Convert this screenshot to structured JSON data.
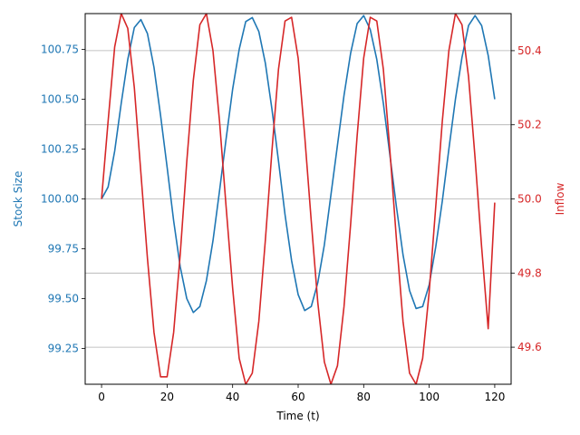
{
  "chart_data": {
    "type": "line",
    "title": "",
    "xlabel": "Time (t)",
    "ylabel_left": "Stock Size",
    "ylabel_right": "Inflow",
    "xlim": [
      -5,
      125
    ],
    "ylim_left": [
      99.07,
      100.93
    ],
    "ylim_right": [
      49.5,
      50.5
    ],
    "x_ticks": [
      0,
      20,
      40,
      60,
      80,
      100,
      120
    ],
    "y_left_ticks": [
      99.25,
      99.5,
      99.75,
      100.0,
      100.25,
      100.5,
      100.75
    ],
    "y_left_tick_labels": [
      "99.25",
      "99.50",
      "99.75",
      "100.00",
      "100.25",
      "100.50",
      "100.75"
    ],
    "y_right_ticks": [
      49.6,
      49.8,
      50.0,
      50.2,
      50.4
    ],
    "y_right_tick_labels": [
      "49.6",
      "49.8",
      "50.0",
      "50.2",
      "50.4"
    ],
    "grid": "horizontal lines at right-axis ticks",
    "legend": "none",
    "colors": {
      "stock": "#1f77b4",
      "inflow": "#d62728",
      "axes": "#000000",
      "grid": "#b0b0b0"
    },
    "series": [
      {
        "axis": "left",
        "x": [
          0,
          2,
          4,
          6,
          8,
          10,
          12,
          14,
          16,
          18,
          20,
          22,
          24,
          26,
          28,
          30,
          32,
          34,
          36,
          38,
          40,
          42,
          44,
          46,
          48,
          50,
          52,
          54,
          56,
          58,
          60,
          62,
          64,
          66,
          68,
          70,
          72,
          74,
          76,
          78,
          80,
          82,
          84,
          86,
          88,
          90,
          92,
          94,
          96,
          98,
          100,
          102,
          104,
          106,
          108,
          110,
          112,
          114,
          116,
          118,
          120
        ],
        "values": [
          100.0,
          100.06,
          100.24,
          100.48,
          100.7,
          100.86,
          100.9,
          100.83,
          100.66,
          100.42,
          100.16,
          99.89,
          99.66,
          99.5,
          99.43,
          99.46,
          99.59,
          99.79,
          100.04,
          100.3,
          100.55,
          100.75,
          100.89,
          100.91,
          100.84,
          100.68,
          100.45,
          100.19,
          99.92,
          99.69,
          99.52,
          99.44,
          99.46,
          99.58,
          99.77,
          100.02,
          100.27,
          100.52,
          100.73,
          100.88,
          100.92,
          100.85,
          100.7,
          100.48,
          100.22,
          99.96,
          99.72,
          99.54,
          99.45,
          99.46,
          99.57,
          99.76,
          99.99,
          100.25,
          100.5,
          100.71,
          100.87,
          100.92,
          100.87,
          100.72,
          100.5
        ]
      },
      {
        "axis": "right",
        "x": [
          0,
          2,
          4,
          6,
          8,
          10,
          12,
          14,
          16,
          18,
          20,
          22,
          24,
          26,
          28,
          30,
          32,
          34,
          36,
          38,
          40,
          42,
          44,
          46,
          48,
          50,
          52,
          54,
          56,
          58,
          60,
          62,
          64,
          66,
          68,
          70,
          72,
          74,
          76,
          78,
          80,
          82,
          84,
          86,
          88,
          90,
          92,
          94,
          96,
          98,
          100,
          102,
          104,
          106,
          108,
          110,
          112,
          114,
          116,
          118,
          120
        ],
        "values": [
          50.0,
          50.21,
          50.41,
          50.5,
          50.46,
          50.3,
          50.07,
          49.84,
          49.64,
          49.52,
          49.52,
          49.64,
          49.85,
          50.1,
          50.32,
          50.47,
          50.5,
          50.4,
          50.21,
          49.98,
          49.76,
          49.57,
          49.5,
          49.53,
          49.67,
          49.89,
          50.13,
          50.35,
          50.48,
          50.49,
          50.38,
          50.17,
          49.94,
          49.72,
          49.56,
          49.5,
          49.55,
          49.71,
          49.93,
          50.17,
          50.38,
          50.49,
          50.48,
          50.35,
          50.13,
          49.89,
          49.67,
          49.53,
          49.5,
          49.57,
          49.75,
          49.98,
          50.21,
          50.4,
          50.5,
          50.47,
          50.33,
          50.11,
          49.87,
          49.65,
          49.99
        ]
      }
    ]
  }
}
